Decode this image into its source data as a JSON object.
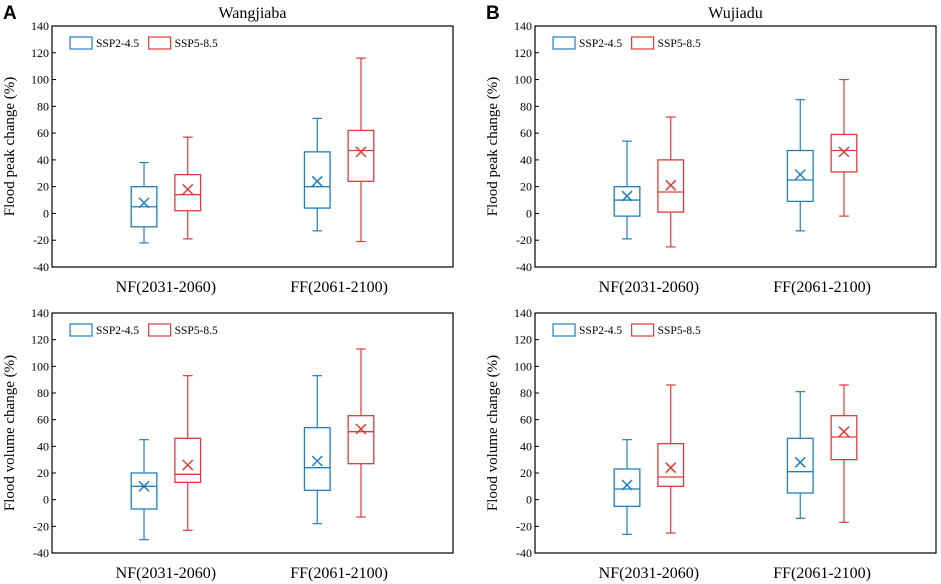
{
  "colors": {
    "ssp245": "#1f7fc0",
    "ssp585": "#e03a3a",
    "axis": "#000000"
  },
  "chart_data": [
    {
      "panel_letter": "A",
      "title": "Wangjiaba",
      "type": "box",
      "ylabel": "Flood peak change (%)",
      "xlabel": "",
      "ylim": [
        -40,
        140
      ],
      "yticks": [
        -40,
        -20,
        0,
        20,
        40,
        60,
        80,
        100,
        120,
        140
      ],
      "categories": [
        "NF(2031-2060)",
        "FF(2061-2100)"
      ],
      "legend": [
        "SSP2-4.5",
        "SSP5-8.5"
      ],
      "series": [
        {
          "name": "SSP2-4.5",
          "boxes": [
            {
              "min": -22,
              "q1": -10,
              "median": 5,
              "q3": 20,
              "max": 38,
              "mean": 8
            },
            {
              "min": -13,
              "q1": 4,
              "median": 20,
              "q3": 46,
              "max": 71,
              "mean": 24
            }
          ]
        },
        {
          "name": "SSP5-8.5",
          "boxes": [
            {
              "min": -19,
              "q1": 2,
              "median": 14,
              "q3": 29,
              "max": 57,
              "mean": 18
            },
            {
              "min": -21,
              "q1": 24,
              "median": 47,
              "q3": 62,
              "max": 116,
              "mean": 46
            }
          ]
        }
      ]
    },
    {
      "panel_letter": "B",
      "title": "Wujiadu",
      "type": "box",
      "ylabel": "Flood peak change (%)",
      "xlabel": "",
      "ylim": [
        -40,
        140
      ],
      "yticks": [
        -40,
        -20,
        0,
        20,
        40,
        60,
        80,
        100,
        120,
        140
      ],
      "categories": [
        "NF(2031-2060)",
        "FF(2061-2100)"
      ],
      "legend": [
        "SSP2-4.5",
        "SSP5-8.5"
      ],
      "series": [
        {
          "name": "SSP2-4.5",
          "boxes": [
            {
              "min": -19,
              "q1": -2,
              "median": 10,
              "q3": 20,
              "max": 54,
              "mean": 13
            },
            {
              "min": -13,
              "q1": 9,
              "median": 25,
              "q3": 47,
              "max": 85,
              "mean": 29
            }
          ]
        },
        {
          "name": "SSP5-8.5",
          "boxes": [
            {
              "min": -25,
              "q1": 1,
              "median": 16,
              "q3": 40,
              "max": 72,
              "mean": 21
            },
            {
              "min": -2,
              "q1": 31,
              "median": 47,
              "q3": 59,
              "max": 100,
              "mean": 46
            }
          ]
        }
      ]
    },
    {
      "panel_letter": "",
      "title": "",
      "type": "box",
      "ylabel": "Flood volume change (%)",
      "xlabel": "",
      "ylim": [
        -40,
        140
      ],
      "yticks": [
        -40,
        -20,
        0,
        20,
        40,
        60,
        80,
        100,
        120,
        140
      ],
      "categories": [
        "NF(2031-2060)",
        "FF(2061-2100)"
      ],
      "legend": [
        "SSP2-4.5",
        "SSP5-8.5"
      ],
      "series": [
        {
          "name": "SSP2-4.5",
          "boxes": [
            {
              "min": -30,
              "q1": -7,
              "median": 10,
              "q3": 20,
              "max": 45,
              "mean": 10
            },
            {
              "min": -18,
              "q1": 7,
              "median": 24,
              "q3": 54,
              "max": 93,
              "mean": 29
            }
          ]
        },
        {
          "name": "SSP5-8.5",
          "boxes": [
            {
              "min": -23,
              "q1": 13,
              "median": 19,
              "q3": 46,
              "max": 93,
              "mean": 26
            },
            {
              "min": -13,
              "q1": 27,
              "median": 51,
              "q3": 63,
              "max": 113,
              "mean": 53
            }
          ]
        }
      ]
    },
    {
      "panel_letter": "",
      "title": "",
      "type": "box",
      "ylabel": "Flood volume change (%)",
      "xlabel": "",
      "ylim": [
        -40,
        140
      ],
      "yticks": [
        -40,
        -20,
        0,
        20,
        40,
        60,
        80,
        100,
        120,
        140
      ],
      "categories": [
        "NF(2031-2060)",
        "FF(2061-2100)"
      ],
      "legend": [
        "SSP2-4.5",
        "SSP5-8.5"
      ],
      "series": [
        {
          "name": "SSP2-4.5",
          "boxes": [
            {
              "min": -26,
              "q1": -5,
              "median": 8,
              "q3": 23,
              "max": 45,
              "mean": 11
            },
            {
              "min": -14,
              "q1": 5,
              "median": 21,
              "q3": 46,
              "max": 81,
              "mean": 28
            }
          ]
        },
        {
          "name": "SSP5-8.5",
          "boxes": [
            {
              "min": -25,
              "q1": 10,
              "median": 17,
              "q3": 42,
              "max": 86,
              "mean": 24
            },
            {
              "min": -17,
              "q1": 30,
              "median": 47,
              "q3": 63,
              "max": 86,
              "mean": 51
            }
          ]
        }
      ]
    }
  ]
}
